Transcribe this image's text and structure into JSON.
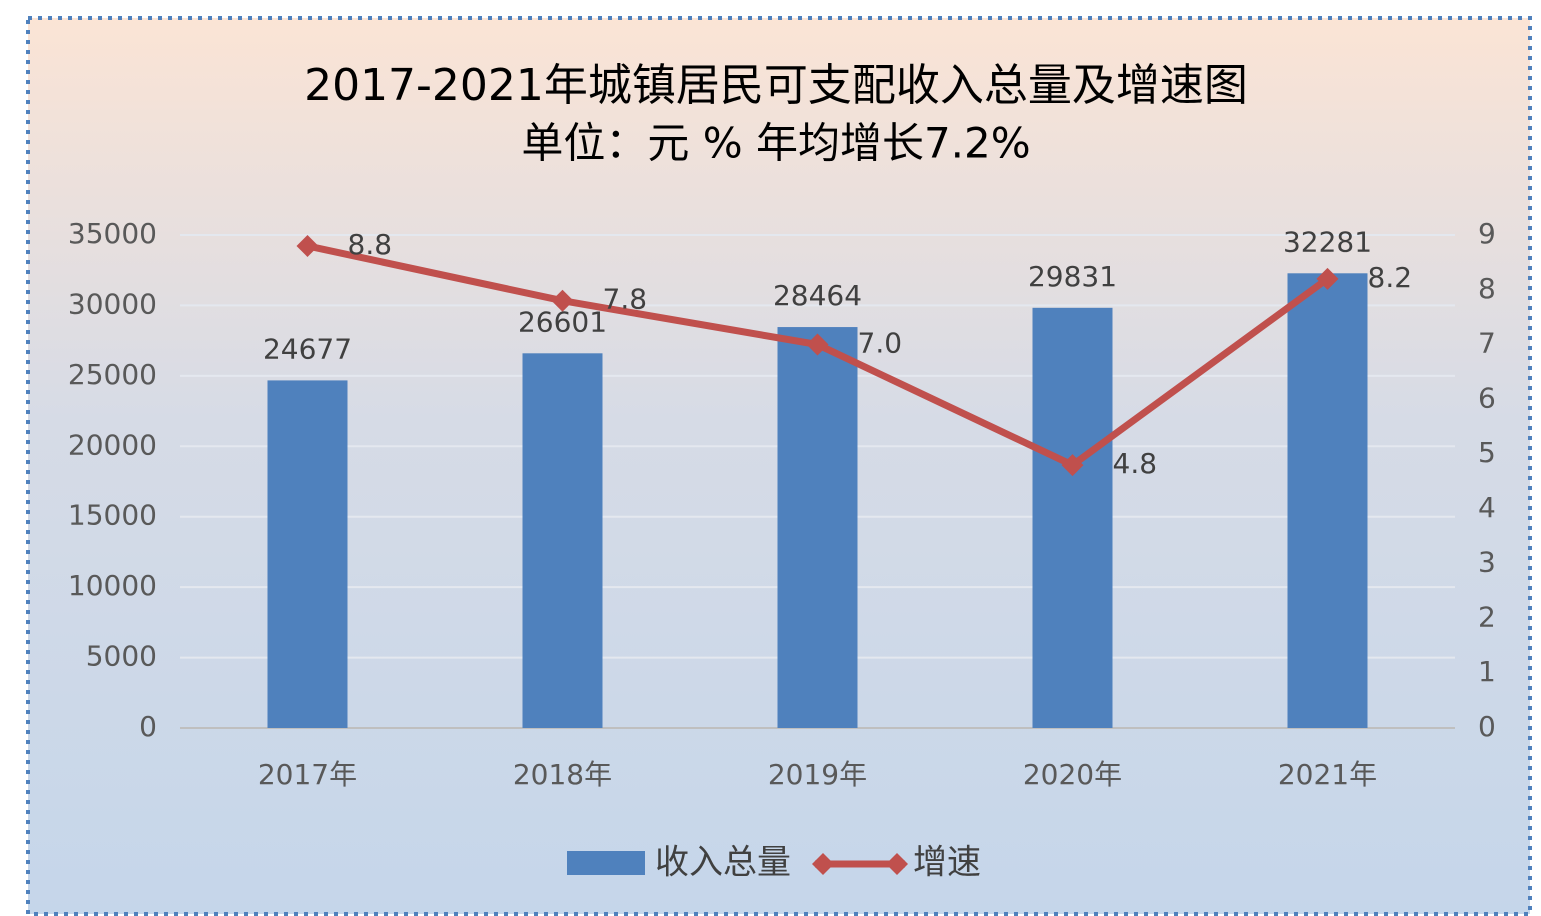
{
  "chart_data": {
    "type": "bar-line",
    "title": "2017-2021年城镇居民可支配收入总量及增速图",
    "subtitle": "单位：元 % 年均增长7.2%",
    "categories": [
      "2017年",
      "2018年",
      "2019年",
      "2020年",
      "2021年"
    ],
    "series": [
      {
        "name": "收入总量",
        "type": "bar",
        "color": "#4f81bd",
        "values": [
          24677,
          26601,
          28464,
          29831,
          32281
        ]
      },
      {
        "name": "增速",
        "type": "line",
        "axis": "y2",
        "color": "#c0504d",
        "values": [
          8.8,
          7.8,
          7.0,
          4.8,
          8.2
        ],
        "value_labels": [
          "8.8",
          "7.8",
          "7.0",
          "4.8",
          "8.2"
        ]
      }
    ],
    "ylim": [
      0,
      35000
    ],
    "yticks": [
      0,
      5000,
      10000,
      15000,
      20000,
      25000,
      30000,
      35000
    ],
    "y2lim": [
      0,
      9
    ],
    "y2ticks": [
      0,
      1,
      2,
      3,
      4,
      5,
      6,
      7,
      8,
      9
    ],
    "grid": true,
    "legend": "bottom"
  }
}
